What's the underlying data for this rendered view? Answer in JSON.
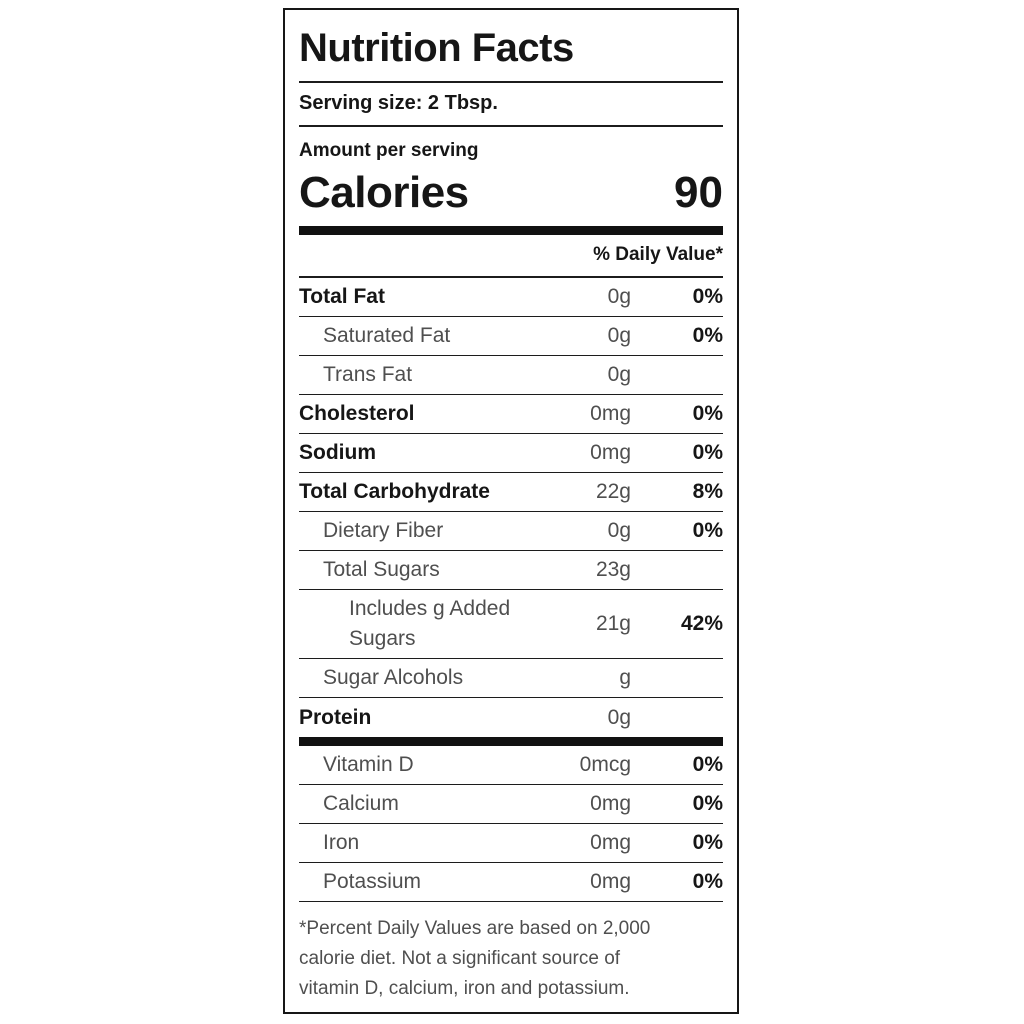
{
  "colors": {
    "text_black": "#161616",
    "text_gray": "#4f4f4f",
    "rule_black": "#1c1c1c",
    "background": "#ffffff"
  },
  "label": {
    "title": "Nutrition Facts",
    "serving_size": "Serving size: 2 Tbsp.",
    "amount_per_serving": "Amount per serving",
    "calories_label": "Calories",
    "calories_value": "90",
    "daily_value_header": "% Daily Value*",
    "rows": [
      {
        "name": "Total Fat",
        "amount": "0g",
        "dv": "0%",
        "bold": true,
        "indent": 0
      },
      {
        "name": "Saturated Fat",
        "amount": "0g",
        "dv": "0%",
        "bold": false,
        "indent": 1
      },
      {
        "name": "Trans Fat",
        "amount": "0g",
        "dv": "",
        "bold": false,
        "indent": 1
      },
      {
        "name": "Cholesterol",
        "amount": "0mg",
        "dv": "0%",
        "bold": true,
        "indent": 0
      },
      {
        "name": "Sodium",
        "amount": "0mg",
        "dv": "0%",
        "bold": true,
        "indent": 0
      },
      {
        "name": "Total Carbohydrate",
        "amount": "22g",
        "dv": "8%",
        "bold": true,
        "indent": 0
      },
      {
        "name": "Dietary Fiber",
        "amount": "0g",
        "dv": "0%",
        "bold": false,
        "indent": 1
      },
      {
        "name": "Total Sugars",
        "amount": "23g",
        "dv": "",
        "bold": false,
        "indent": 1
      },
      {
        "name": "Includes g Added Sugars",
        "amount": "21g",
        "dv": "42%",
        "bold": false,
        "indent": 2,
        "wrap": true
      },
      {
        "name": "Sugar Alcohols",
        "amount": "g",
        "dv": "",
        "bold": false,
        "indent": 1
      },
      {
        "name": "Protein",
        "amount": "0g",
        "dv": "",
        "bold": true,
        "indent": 0,
        "thick_after": true
      },
      {
        "name": "Vitamin D",
        "amount": "0mcg",
        "dv": "0%",
        "bold": false,
        "indent": 1
      },
      {
        "name": "Calcium",
        "amount": "0mg",
        "dv": "0%",
        "bold": false,
        "indent": 1
      },
      {
        "name": "Iron",
        "amount": "0mg",
        "dv": "0%",
        "bold": false,
        "indent": 1
      },
      {
        "name": "Potassium",
        "amount": "0mg",
        "dv": "0%",
        "bold": false,
        "indent": 1
      }
    ],
    "footnote": "*Percent Daily Values are based on 2,000 calorie diet. Not a significant source of vitamin D, calcium, iron and potassium."
  }
}
